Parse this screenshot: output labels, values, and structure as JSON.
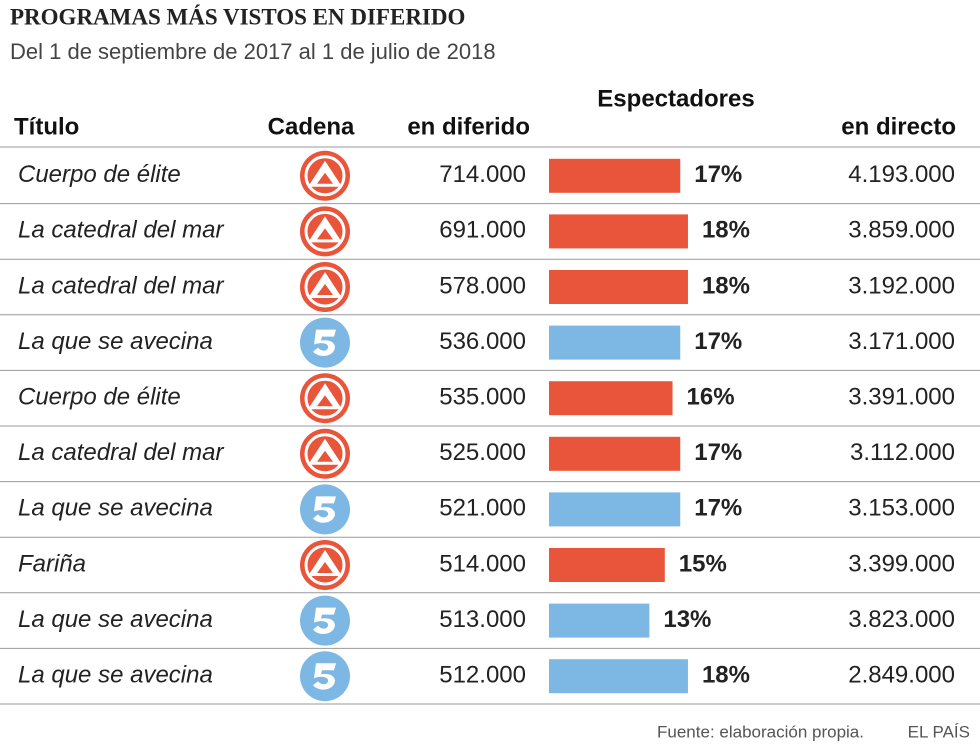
{
  "header": {
    "title": "PROGRAMAS MÁS VISTOS EN DIFERIDO",
    "subtitle": "Del 1 de septiembre de 2017 al 1 de julio de 2018"
  },
  "table": {
    "group_header": "Espectadores",
    "columns": [
      "Título",
      "Cadena",
      "en diferido",
      "en directo"
    ],
    "rows": [
      {
        "title": "Cuerpo de élite",
        "color": "#e8553a",
        "delayed": "714.000",
        "share": 17,
        "share_label": "17%",
        "live": "4.193.000"
      },
      {
        "title": "La catedral del mar",
        "color": "#e8553a",
        "delayed": "691.000",
        "share": 18,
        "share_label": "18%",
        "live": "3.859.000"
      },
      {
        "title": "La catedral del mar",
        "color": "#e8553a",
        "delayed": "578.000",
        "share": 18,
        "share_label": "18%",
        "live": "3.192.000"
      },
      {
        "title": "La que se avecina",
        "color": "#7db7e3",
        "delayed": "536.000",
        "share": 17,
        "share_label": "17%",
        "live": "3.171.000"
      },
      {
        "title": "Cuerpo de élite",
        "color": "#e8553a",
        "delayed": "535.000",
        "share": 16,
        "share_label": "16%",
        "live": "3.391.000"
      },
      {
        "title": "La catedral del mar",
        "color": "#e8553a",
        "delayed": "525.000",
        "share": 17,
        "share_label": "17%",
        "live": "3.112.000"
      },
      {
        "title": "La que se avecina",
        "color": "#7db7e3",
        "delayed": "521.000",
        "share": 17,
        "share_label": "17%",
        "live": "3.153.000"
      },
      {
        "title": "Fariña",
        "color": "#e8553a",
        "delayed": "514.000",
        "share": 15,
        "share_label": "15%",
        "live": "3.399.000"
      },
      {
        "title": "La que se avecina",
        "color": "#7db7e3",
        "delayed": "513.000",
        "share": 13,
        "share_label": "13%",
        "live": "3.823.000"
      },
      {
        "title": "La que se avecina",
        "color": "#7db7e3",
        "delayed": "512.000",
        "share": 18,
        "share_label": "18%",
        "live": "2.849.000"
      }
    ]
  },
  "footer": {
    "source": "Fuente: elaboración propia.",
    "brand": "EL PAÍS"
  }
}
